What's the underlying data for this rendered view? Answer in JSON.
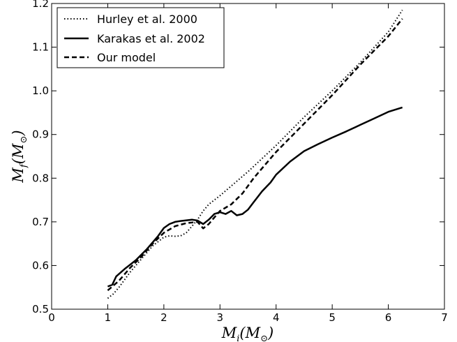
{
  "chart_data": {
    "type": "line",
    "xlabel": {
      "base": "M",
      "sub": "i",
      "unit_base": "M",
      "unit_sym": "⊙"
    },
    "ylabel": {
      "base": "M",
      "sub": "f",
      "unit_base": "M",
      "unit_sym": "⊙"
    },
    "xlim": [
      0,
      7
    ],
    "ylim": [
      0.5,
      1.2
    ],
    "xticks": [
      "0",
      "1",
      "2",
      "3",
      "4",
      "5",
      "6",
      "7"
    ],
    "yticks": [
      "0.5",
      "0.6",
      "0.7",
      "0.8",
      "0.9",
      "1.0",
      "1.1",
      "1.2"
    ],
    "grid": false,
    "legend_position": "top-left",
    "series": [
      {
        "name": "Hurley et al. 2000",
        "style": "dotted",
        "color": "#000000",
        "x": [
          1.0,
          1.1,
          1.2,
          1.4,
          1.6,
          1.8,
          2.0,
          2.1,
          2.2,
          2.3,
          2.4,
          2.5,
          2.6,
          2.7,
          2.8,
          3.0,
          3.5,
          4.0,
          4.5,
          5.0,
          5.5,
          6.0,
          6.25
        ],
        "y": [
          0.525,
          0.535,
          0.55,
          0.585,
          0.615,
          0.645,
          0.665,
          0.668,
          0.667,
          0.668,
          0.675,
          0.69,
          0.705,
          0.725,
          0.74,
          0.76,
          0.815,
          0.875,
          0.94,
          1.0,
          1.065,
          1.135,
          1.185
        ]
      },
      {
        "name": "Karakas et al. 2002",
        "style": "solid",
        "color": "#000000",
        "x": [
          1.0,
          1.08,
          1.15,
          1.3,
          1.5,
          1.7,
          1.9,
          2.0,
          2.1,
          2.2,
          2.3,
          2.5,
          2.6,
          2.7,
          2.8,
          2.9,
          3.0,
          3.1,
          3.2,
          3.3,
          3.4,
          3.5,
          3.6,
          3.75,
          3.9,
          4.0,
          4.25,
          4.5,
          4.75,
          5.0,
          5.25,
          5.5,
          5.75,
          6.0,
          6.25
        ],
        "y": [
          0.552,
          0.556,
          0.575,
          0.592,
          0.612,
          0.638,
          0.668,
          0.686,
          0.695,
          0.7,
          0.702,
          0.705,
          0.703,
          0.695,
          0.705,
          0.718,
          0.722,
          0.718,
          0.725,
          0.715,
          0.718,
          0.728,
          0.745,
          0.77,
          0.79,
          0.808,
          0.838,
          0.862,
          0.878,
          0.893,
          0.907,
          0.922,
          0.937,
          0.952,
          0.962
        ]
      },
      {
        "name": "Our model",
        "style": "dashed",
        "color": "#000000",
        "x": [
          1.0,
          1.2,
          1.4,
          1.6,
          1.8,
          2.0,
          2.2,
          2.4,
          2.6,
          2.7,
          2.8,
          2.9,
          3.0,
          3.2,
          3.4,
          3.6,
          3.8,
          4.0,
          4.5,
          5.0,
          5.5,
          6.0,
          6.25
        ],
        "y": [
          0.543,
          0.565,
          0.595,
          0.62,
          0.65,
          0.675,
          0.69,
          0.697,
          0.7,
          0.685,
          0.695,
          0.71,
          0.725,
          0.74,
          0.765,
          0.8,
          0.83,
          0.86,
          0.925,
          0.99,
          1.06,
          1.125,
          1.165
        ]
      }
    ]
  }
}
